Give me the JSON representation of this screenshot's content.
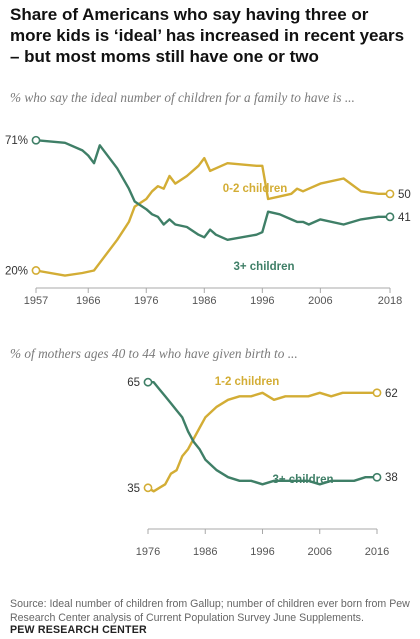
{
  "title": "Share of Americans who say having three or more kids is ‘ideal’ has increased in recent years – but most moms still have one or two",
  "source": "Source: Ideal number of children from Gallup; number of children ever born from Pew Research Center analysis of Current Population Survey June Supplements.",
  "brand": "PEW RESEARCH CENTER",
  "colors": {
    "zero_to_two": "#d3ad35",
    "three_plus": "#3f7f67",
    "axis": "#a8a8a8"
  },
  "chart_data": [
    {
      "type": "line",
      "subtitle": "% who say the ideal number of children for a family to have is ...",
      "xlim": [
        1957,
        2018
      ],
      "ylim": [
        10,
        75
      ],
      "xticks": [
        "1957",
        "1966",
        "1976",
        "1986",
        "1996",
        "2006",
        "2018"
      ],
      "series": [
        {
          "name": "0-2 children",
          "color": "#d3ad35",
          "start_label": "20%",
          "end_label": "50",
          "points": [
            [
              1957,
              20
            ],
            [
              1962,
              18
            ],
            [
              1965,
              19
            ],
            [
              1967,
              20
            ],
            [
              1968,
              23
            ],
            [
              1971,
              32
            ],
            [
              1973,
              39
            ],
            [
              1974,
              45
            ],
            [
              1976,
              48
            ],
            [
              1977,
              51
            ],
            [
              1978,
              53
            ],
            [
              1979,
              52
            ],
            [
              1980,
              57
            ],
            [
              1981,
              54
            ],
            [
              1983,
              57
            ],
            [
              1985,
              61
            ],
            [
              1986,
              64
            ],
            [
              1987,
              59
            ],
            [
              1988,
              60
            ],
            [
              1990,
              62
            ],
            [
              1995,
              61
            ],
            [
              1996,
              61
            ],
            [
              1997,
              48
            ],
            [
              1999,
              49
            ],
            [
              2001,
              50
            ],
            [
              2002,
              52
            ],
            [
              2003,
              51
            ],
            [
              2004,
              52
            ],
            [
              2006,
              54
            ],
            [
              2010,
              56
            ],
            [
              2013,
              51
            ],
            [
              2016,
              50
            ],
            [
              2018,
              50
            ]
          ]
        },
        {
          "name": "3+ children",
          "color": "#3f7f67",
          "start_label": "71%",
          "end_label": "41",
          "points": [
            [
              1957,
              71
            ],
            [
              1962,
              70
            ],
            [
              1965,
              67
            ],
            [
              1966,
              65
            ],
            [
              1967,
              62
            ],
            [
              1968,
              69
            ],
            [
              1971,
              60
            ],
            [
              1973,
              52
            ],
            [
              1974,
              47
            ],
            [
              1976,
              44
            ],
            [
              1977,
              42
            ],
            [
              1978,
              41
            ],
            [
              1979,
              38
            ],
            [
              1980,
              40
            ],
            [
              1981,
              38
            ],
            [
              1983,
              37
            ],
            [
              1985,
              34
            ],
            [
              1986,
              33
            ],
            [
              1987,
              36
            ],
            [
              1988,
              34
            ],
            [
              1990,
              32
            ],
            [
              1995,
              34
            ],
            [
              1996,
              35
            ],
            [
              1997,
              43
            ],
            [
              1999,
              42
            ],
            [
              2001,
              40
            ],
            [
              2002,
              39
            ],
            [
              2003,
              39
            ],
            [
              2004,
              38
            ],
            [
              2006,
              40
            ],
            [
              2010,
              38
            ],
            [
              2013,
              40
            ],
            [
              2016,
              41
            ],
            [
              2018,
              41
            ]
          ]
        }
      ]
    },
    {
      "type": "line",
      "subtitle": "% of mothers ages 40 to 44 who have given birth to ...",
      "xlim": [
        1976,
        2016
      ],
      "ylim": [
        25,
        75
      ],
      "xticks": [
        "1976",
        "1986",
        "1996",
        "2006",
        "2016"
      ],
      "series": [
        {
          "name": "1-2 children",
          "color": "#d3ad35",
          "start_label": "35",
          "end_label": "62",
          "points": [
            [
              1976,
              35
            ],
            [
              1977,
              34
            ],
            [
              1978,
              35
            ],
            [
              1979,
              36
            ],
            [
              1980,
              39
            ],
            [
              1981,
              40
            ],
            [
              1982,
              44
            ],
            [
              1983,
              46
            ],
            [
              1984,
              49
            ],
            [
              1985,
              52
            ],
            [
              1986,
              55
            ],
            [
              1988,
              58
            ],
            [
              1990,
              60
            ],
            [
              1992,
              61
            ],
            [
              1994,
              61
            ],
            [
              1996,
              62
            ],
            [
              1998,
              60
            ],
            [
              2000,
              61
            ],
            [
              2002,
              61
            ],
            [
              2004,
              61
            ],
            [
              2006,
              62
            ],
            [
              2008,
              61
            ],
            [
              2010,
              62
            ],
            [
              2012,
              62
            ],
            [
              2014,
              62
            ],
            [
              2016,
              62
            ]
          ]
        },
        {
          "name": "3+ children",
          "color": "#3f7f67",
          "start_label": "65",
          "end_label": "38",
          "points": [
            [
              1976,
              65
            ],
            [
              1977,
              65
            ],
            [
              1978,
              63
            ],
            [
              1979,
              61
            ],
            [
              1980,
              59
            ],
            [
              1981,
              57
            ],
            [
              1982,
              55
            ],
            [
              1983,
              51
            ],
            [
              1984,
              48
            ],
            [
              1985,
              46
            ],
            [
              1986,
              43
            ],
            [
              1988,
              40
            ],
            [
              1990,
              38
            ],
            [
              1992,
              37
            ],
            [
              1994,
              37
            ],
            [
              1996,
              36
            ],
            [
              1998,
              37
            ],
            [
              2000,
              37
            ],
            [
              2002,
              37
            ],
            [
              2004,
              37
            ],
            [
              2006,
              36
            ],
            [
              2008,
              37
            ],
            [
              2010,
              37
            ],
            [
              2012,
              37
            ],
            [
              2014,
              38
            ],
            [
              2016,
              38
            ]
          ]
        }
      ]
    }
  ]
}
